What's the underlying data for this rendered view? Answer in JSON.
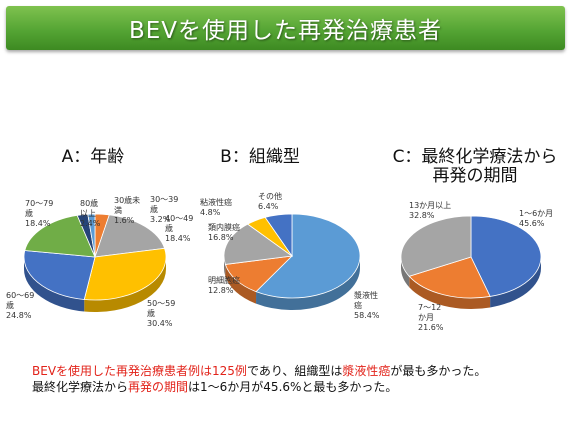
{
  "title": "BEVを使用した再発治療患者",
  "chart_data": [
    {
      "type": "pie",
      "title": "A：年齢",
      "slices": [
        {
          "label": "30～39歳",
          "value": 3.2,
          "color": "#ed7d31",
          "text": "30～39\n歳\n3.2%"
        },
        {
          "label": "40～49歳",
          "value": 18.4,
          "color": "#a5a5a5",
          "text": "40～49\n歳\n18.4%"
        },
        {
          "label": "50～59歳",
          "value": 30.4,
          "color": "#ffc000",
          "text": "50～59\n歳\n30.4%"
        },
        {
          "label": "60～69歳",
          "value": 24.8,
          "color": "#4472c4",
          "text": "60～69\n歳\n24.8%"
        },
        {
          "label": "70～79歳",
          "value": 18.4,
          "color": "#70ad47",
          "text": "70～79\n歳\n18.4%"
        },
        {
          "label": "80歳以上",
          "value": 2.4,
          "color": "#264478",
          "text": "80歳\n以上\n2.4%"
        },
        {
          "label": "30歳未満",
          "value": 1.6,
          "color": "#5b9bd5",
          "text": "30歳未\n満\n1.6%"
        }
      ]
    },
    {
      "type": "pie",
      "title": "B：組織型",
      "slices": [
        {
          "label": "漿液性癌",
          "value": 58.4,
          "color": "#5b9bd5",
          "text": "漿液性\n癌\n58.4%"
        },
        {
          "label": "明細胞癌",
          "value": 12.8,
          "color": "#ed7d31",
          "text": "明細胞癌\n12.8%"
        },
        {
          "label": "類内膜癌",
          "value": 16.8,
          "color": "#a5a5a5",
          "text": "類内膜癌\n16.8%"
        },
        {
          "label": "粘液性癌",
          "value": 4.8,
          "color": "#ffc000",
          "text": "粘液性癌\n4.8%"
        },
        {
          "label": "その他",
          "value": 6.4,
          "color": "#4472c4",
          "text": "その他\n6.4%"
        }
      ]
    },
    {
      "type": "pie",
      "title": "C：最終化学療法から\n再発の期間",
      "slices": [
        {
          "label": "1～6か月",
          "value": 45.6,
          "color": "#4472c4",
          "text": "1～6か月\n45.6%"
        },
        {
          "label": "7～12か月",
          "value": 21.6,
          "color": "#ed7d31",
          "text": "7～12\nか月\n21.6%"
        },
        {
          "label": "13か月以上",
          "value": 32.8,
          "color": "#a5a5a5",
          "text": "13か月以上\n32.8%"
        }
      ]
    }
  ],
  "footnote": {
    "line1": [
      {
        "text": "BEVを使用した再発治療患者例は125例",
        "red": true
      },
      {
        "text": "であり、組織型は",
        "red": false
      },
      {
        "text": "漿液性癌",
        "red": true
      },
      {
        "text": "が最も多かった。",
        "red": false
      }
    ],
    "line2": [
      {
        "text": "最終化学療法から",
        "red": false
      },
      {
        "text": "再発の期間",
        "red": true
      },
      {
        "text": "は1～6か月が45.6%と最も多かった。",
        "red": false
      }
    ]
  }
}
